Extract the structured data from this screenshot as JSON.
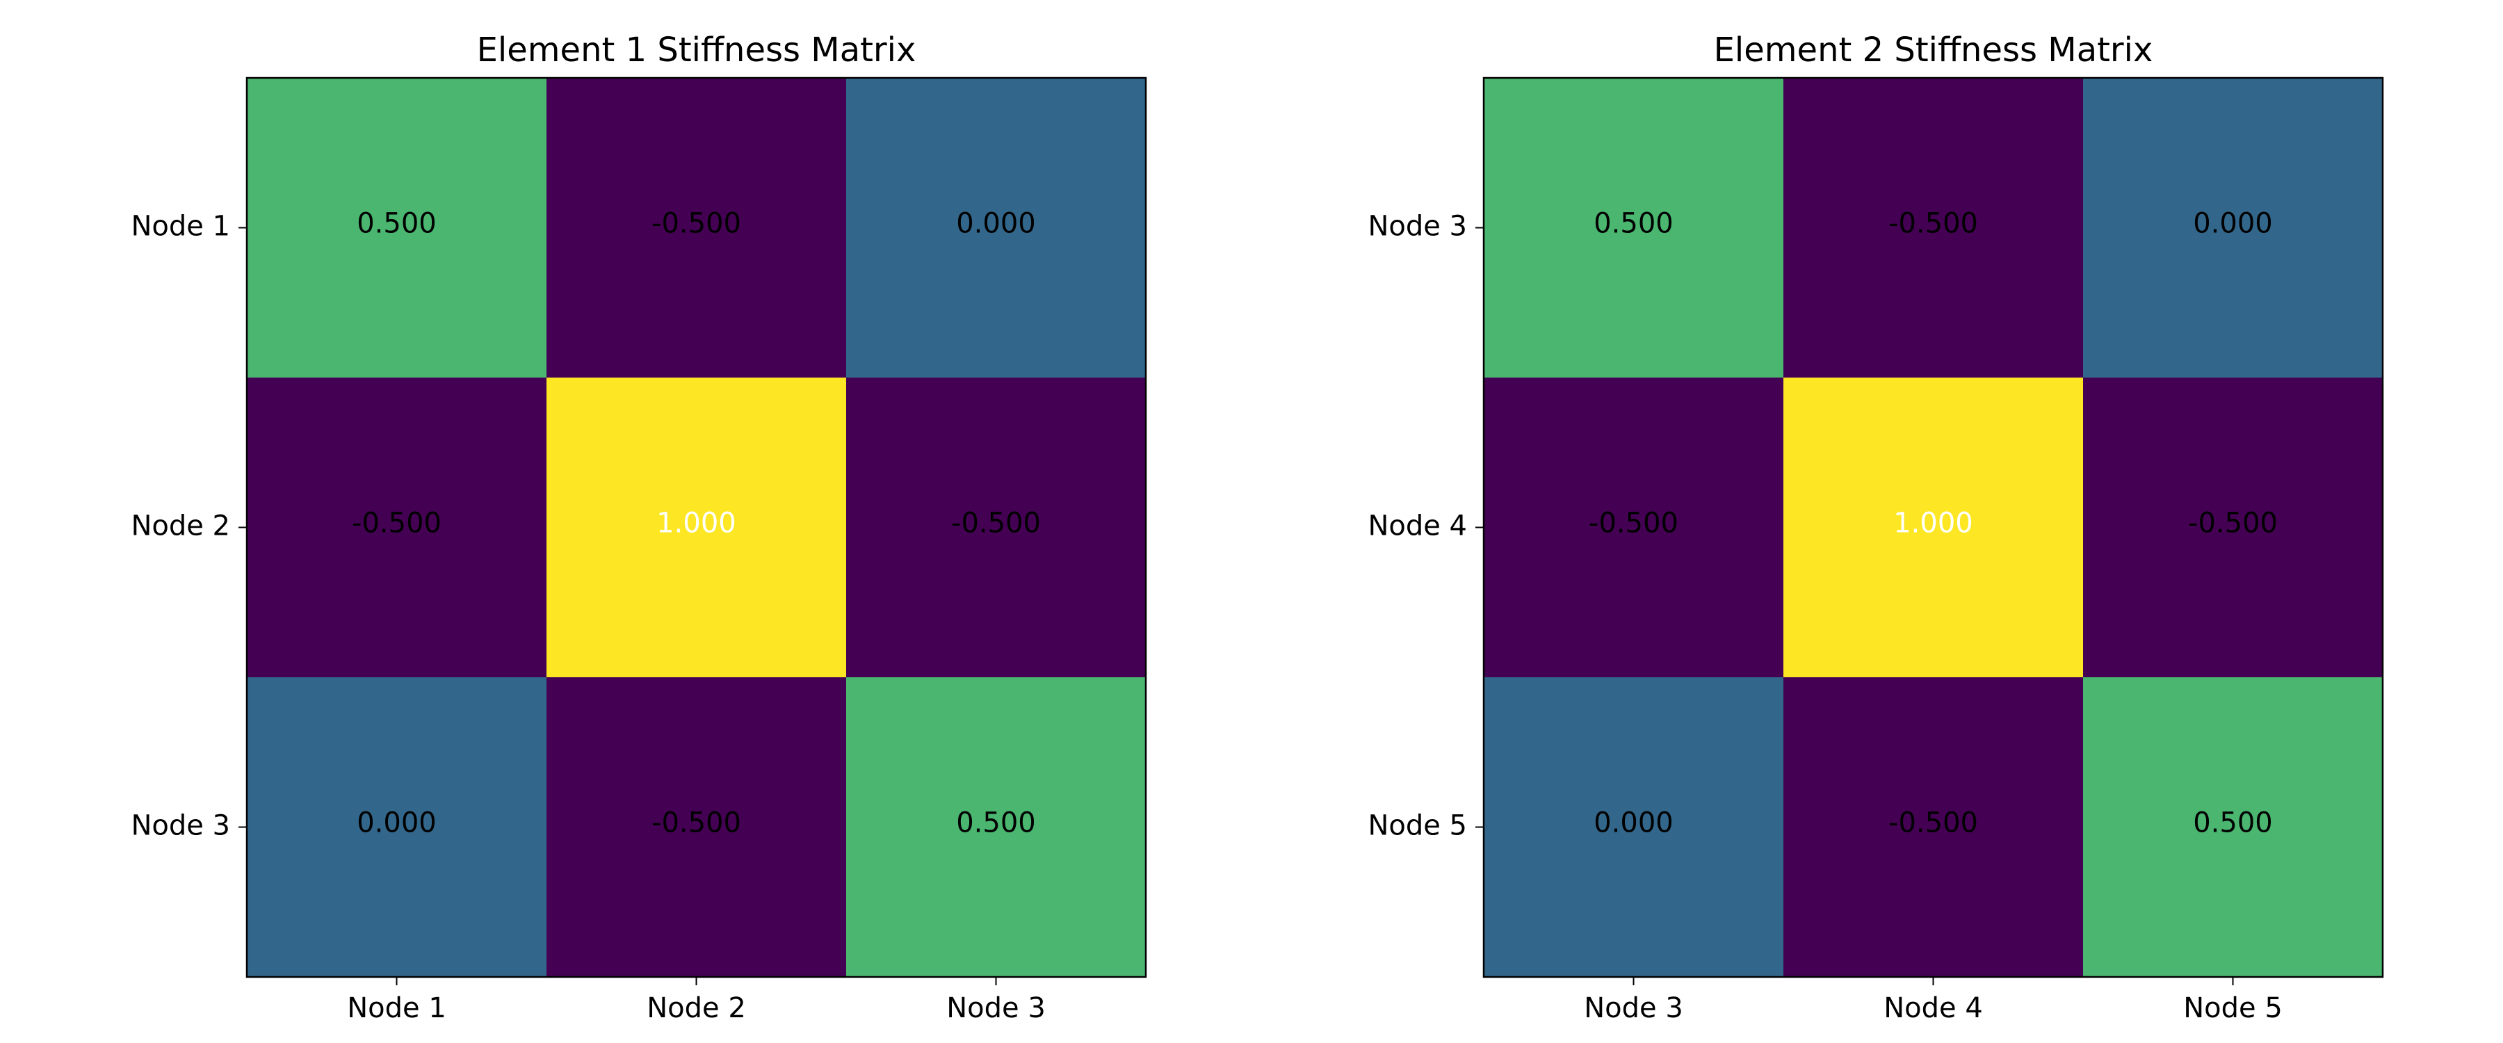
{
  "chart_data": [
    {
      "type": "heatmap",
      "title": "Element 1 Stiffness Matrix",
      "xlabel": "",
      "ylabel": "",
      "x_categories": [
        "Node 1",
        "Node 2",
        "Node 3"
      ],
      "y_categories": [
        "Node 1",
        "Node 2",
        "Node 3"
      ],
      "values": [
        [
          0.5,
          -0.5,
          0.0
        ],
        [
          -0.5,
          1.0,
          -0.5
        ],
        [
          0.0,
          -0.5,
          0.5
        ]
      ],
      "cell_labels": [
        [
          "0.500",
          "-0.500",
          "0.000"
        ],
        [
          "-0.500",
          "1.000",
          "-0.500"
        ],
        [
          "0.000",
          "-0.500",
          "0.500"
        ]
      ],
      "colormap": "viridis",
      "color_range": [
        -0.5,
        1.0
      ]
    },
    {
      "type": "heatmap",
      "title": "Element 2 Stiffness Matrix",
      "xlabel": "",
      "ylabel": "",
      "x_categories": [
        "Node 3",
        "Node 4",
        "Node 5"
      ],
      "y_categories": [
        "Node 3",
        "Node 4",
        "Node 5"
      ],
      "values": [
        [
          0.5,
          -0.5,
          0.0
        ],
        [
          -0.5,
          1.0,
          -0.5
        ],
        [
          0.0,
          -0.5,
          0.5
        ]
      ],
      "cell_labels": [
        [
          "0.500",
          "-0.500",
          "0.000"
        ],
        [
          "-0.500",
          "1.000",
          "-0.500"
        ],
        [
          "0.000",
          "-0.500",
          "0.500"
        ]
      ],
      "colormap": "viridis",
      "color_range": [
        -0.5,
        1.0
      ]
    }
  ],
  "colors": {
    "background": "#ffffff",
    "label_text_dark": "#000000",
    "label_text_light": "#ffffff",
    "viridis_stops": [
      "#440154",
      "#3b528b",
      "#21918c",
      "#5ec962",
      "#fde725"
    ]
  }
}
